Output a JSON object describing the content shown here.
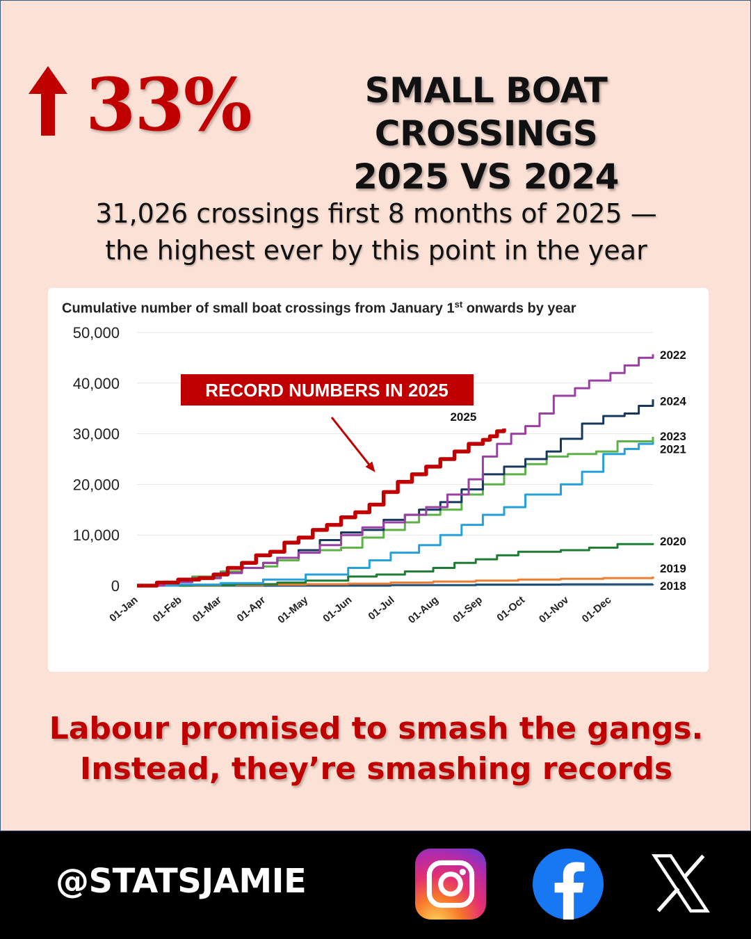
{
  "headline": {
    "percent": "33%",
    "title_line1": "SMALL BOAT CROSSINGS",
    "title_line2": "2025 VS 2024",
    "accent_color": "#c00000",
    "arrow_icon": "arrow-up-icon"
  },
  "subtitle": {
    "line1": "31,026 crossings first 8 months of 2025 —",
    "line2": "the highest ever by this point in the year"
  },
  "tagline": {
    "line1": "Labour promised to smash the gangs.",
    "line2": "Instead, they’re smashing records"
  },
  "footer": {
    "handle": "@STATSJAMIE",
    "icons": [
      "instagram-icon",
      "facebook-icon",
      "x-icon"
    ]
  },
  "chart_data": {
    "type": "line",
    "title_main": "Cumulative number of small boat crossings from January 1",
    "title_sup": "st",
    "title_end": " onwards by year",
    "xlabel": "",
    "ylabel": "",
    "ylim": [
      0,
      50000
    ],
    "xlim_days": [
      1,
      365
    ],
    "grid": true,
    "legend": "end-of-line labels",
    "y_ticks": [
      "0",
      "10,000",
      "20,000",
      "30,000",
      "40,000",
      "50,000"
    ],
    "x_ticks": [
      {
        "label": "01-Jan",
        "day": 1
      },
      {
        "label": "01-Feb",
        "day": 32
      },
      {
        "label": "01-Mar",
        "day": 60
      },
      {
        "label": "01-Apr",
        "day": 91
      },
      {
        "label": "01-May",
        "day": 121
      },
      {
        "label": "01-Jun",
        "day": 152
      },
      {
        "label": "01-Jul",
        "day": 182
      },
      {
        "label": "01-Aug",
        "day": 213
      },
      {
        "label": "01-Sep",
        "day": 244
      },
      {
        "label": "01-Oct",
        "day": 274
      },
      {
        "label": "01-Nov",
        "day": 305
      },
      {
        "label": "01-Dec",
        "day": 335
      }
    ],
    "annotation": {
      "text": "RECORD NUMBERS IN 2025",
      "color": "#c00000",
      "points_to": {
        "day": 170,
        "value": 22000
      }
    },
    "series": [
      {
        "name": "2018",
        "color": "#1f4e79",
        "label": "2018",
        "label_value": 0,
        "points": [
          [
            1,
            0
          ],
          [
            60,
            0
          ],
          [
            120,
            0
          ],
          [
            180,
            100
          ],
          [
            240,
            200
          ],
          [
            300,
            250
          ],
          [
            365,
            300
          ]
        ]
      },
      {
        "name": "2019",
        "color": "#ed7d31",
        "label": "2019",
        "label_value": 3400,
        "points": [
          [
            1,
            0
          ],
          [
            30,
            30
          ],
          [
            60,
            100
          ],
          [
            90,
            200
          ],
          [
            120,
            300
          ],
          [
            150,
            400
          ],
          [
            180,
            600
          ],
          [
            210,
            800
          ],
          [
            240,
            1000
          ],
          [
            270,
            1200
          ],
          [
            300,
            1350
          ],
          [
            330,
            1500
          ],
          [
            365,
            1800
          ]
        ]
      },
      {
        "name": "2020",
        "color": "#1e7b34",
        "label": "2020",
        "label_value": 8800,
        "points": [
          [
            1,
            0
          ],
          [
            40,
            100
          ],
          [
            70,
            300
          ],
          [
            100,
            600
          ],
          [
            120,
            1000
          ],
          [
            150,
            1800
          ],
          [
            170,
            2200
          ],
          [
            190,
            2800
          ],
          [
            210,
            3500
          ],
          [
            225,
            4500
          ],
          [
            240,
            5200
          ],
          [
            255,
            6000
          ],
          [
            270,
            6700
          ],
          [
            300,
            7000
          ],
          [
            320,
            7500
          ],
          [
            340,
            8200
          ],
          [
            365,
            8400
          ]
        ]
      },
      {
        "name": "2021",
        "color": "#26a0da",
        "label": "2021",
        "label_value": 27000,
        "points": [
          [
            1,
            0
          ],
          [
            30,
            200
          ],
          [
            60,
            500
          ],
          [
            90,
            1200
          ],
          [
            120,
            2200
          ],
          [
            150,
            3500
          ],
          [
            165,
            5000
          ],
          [
            180,
            6500
          ],
          [
            200,
            8000
          ],
          [
            215,
            10000
          ],
          [
            230,
            12000
          ],
          [
            245,
            14000
          ],
          [
            260,
            15500
          ],
          [
            275,
            18000
          ],
          [
            300,
            20000
          ],
          [
            315,
            22500
          ],
          [
            330,
            26000
          ],
          [
            345,
            27000
          ],
          [
            355,
            28000
          ],
          [
            365,
            28500
          ]
        ]
      },
      {
        "name": "2023",
        "color": "#5cb246",
        "label": "2023",
        "label_value": 29500,
        "points": [
          [
            1,
            0
          ],
          [
            20,
            800
          ],
          [
            40,
            1800
          ],
          [
            60,
            2800
          ],
          [
            75,
            3500
          ],
          [
            90,
            3800
          ],
          [
            100,
            5000
          ],
          [
            115,
            6500
          ],
          [
            130,
            7000
          ],
          [
            145,
            7500
          ],
          [
            160,
            9500
          ],
          [
            175,
            11000
          ],
          [
            190,
            12500
          ],
          [
            200,
            14000
          ],
          [
            215,
            15000
          ],
          [
            230,
            18000
          ],
          [
            245,
            20000
          ],
          [
            260,
            22000
          ],
          [
            275,
            24000
          ],
          [
            290,
            25500
          ],
          [
            305,
            26000
          ],
          [
            325,
            26500
          ],
          [
            340,
            28500
          ],
          [
            365,
            29400
          ]
        ]
      },
      {
        "name": "2024",
        "color": "#17375e",
        "label": "2024",
        "label_value": 36500,
        "points": [
          [
            1,
            0
          ],
          [
            20,
            700
          ],
          [
            40,
            1500
          ],
          [
            60,
            2500
          ],
          [
            75,
            3500
          ],
          [
            90,
            4500
          ],
          [
            100,
            5500
          ],
          [
            115,
            7000
          ],
          [
            130,
            9000
          ],
          [
            145,
            10500
          ],
          [
            160,
            11000
          ],
          [
            175,
            13000
          ],
          [
            190,
            14000
          ],
          [
            200,
            15000
          ],
          [
            215,
            16500
          ],
          [
            230,
            19000
          ],
          [
            245,
            22000
          ],
          [
            260,
            23500
          ],
          [
            275,
            25000
          ],
          [
            290,
            26500
          ],
          [
            300,
            29000
          ],
          [
            315,
            32000
          ],
          [
            330,
            33500
          ],
          [
            345,
            34000
          ],
          [
            355,
            35500
          ],
          [
            365,
            36800
          ]
        ]
      },
      {
        "name": "2022",
        "color": "#9b3fa3",
        "label": "2022",
        "label_value": 45600,
        "points": [
          [
            1,
            0
          ],
          [
            20,
            700
          ],
          [
            40,
            1500
          ],
          [
            60,
            2500
          ],
          [
            75,
            3500
          ],
          [
            90,
            4500
          ],
          [
            100,
            5500
          ],
          [
            115,
            6500
          ],
          [
            130,
            8000
          ],
          [
            145,
            10000
          ],
          [
            160,
            11500
          ],
          [
            175,
            12500
          ],
          [
            190,
            14000
          ],
          [
            205,
            15500
          ],
          [
            220,
            18000
          ],
          [
            235,
            21000
          ],
          [
            245,
            25500
          ],
          [
            255,
            28000
          ],
          [
            265,
            30000
          ],
          [
            275,
            31500
          ],
          [
            285,
            34000
          ],
          [
            295,
            37500
          ],
          [
            310,
            39000
          ],
          [
            320,
            40500
          ],
          [
            335,
            42000
          ],
          [
            345,
            43500
          ],
          [
            355,
            45000
          ],
          [
            365,
            45700
          ]
        ]
      },
      {
        "name": "2025",
        "color": "#c00000",
        "label": "2025",
        "label_value": 32000,
        "points": [
          [
            1,
            0
          ],
          [
            15,
            600
          ],
          [
            30,
            1200
          ],
          [
            45,
            1500
          ],
          [
            55,
            2200
          ],
          [
            65,
            3500
          ],
          [
            75,
            4500
          ],
          [
            85,
            6000
          ],
          [
            95,
            6700
          ],
          [
            105,
            8500
          ],
          [
            115,
            9500
          ],
          [
            125,
            11000
          ],
          [
            135,
            12000
          ],
          [
            145,
            13500
          ],
          [
            155,
            14500
          ],
          [
            165,
            16000
          ],
          [
            175,
            18500
          ],
          [
            185,
            20500
          ],
          [
            195,
            22000
          ],
          [
            205,
            23500
          ],
          [
            215,
            25000
          ],
          [
            225,
            26500
          ],
          [
            235,
            28000
          ],
          [
            245,
            28800
          ],
          [
            250,
            29500
          ],
          [
            255,
            30500
          ],
          [
            260,
            31026
          ]
        ]
      }
    ]
  }
}
